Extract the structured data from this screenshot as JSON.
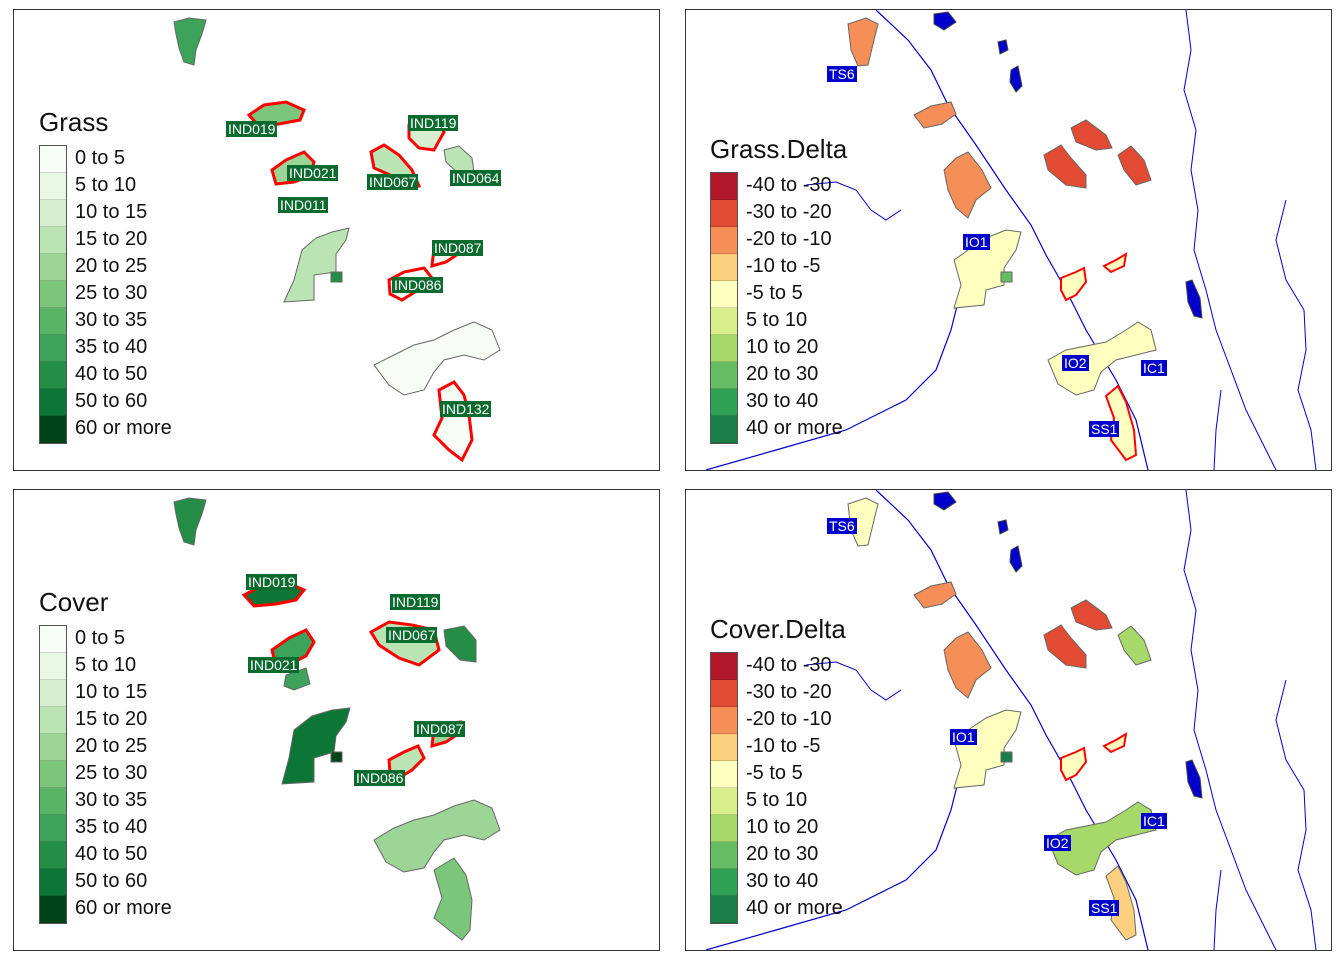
{
  "panels": {
    "grass": {
      "legend_title": "Grass",
      "classes": [
        {
          "label": "0 to 5",
          "color": "#f7fcf5"
        },
        {
          "label": "5 to 10",
          "color": "#e8f6e4"
        },
        {
          "label": "10 to 15",
          "color": "#d5efcf"
        },
        {
          "label": "15 to 20",
          "color": "#bae4b3"
        },
        {
          "label": "20 to 25",
          "color": "#9dd597"
        },
        {
          "label": "25 to 30",
          "color": "#7bc67b"
        },
        {
          "label": "30 to 35",
          "color": "#5ab465"
        },
        {
          "label": "35 to 40",
          "color": "#3da35a"
        },
        {
          "label": "40 to 50",
          "color": "#248d46"
        },
        {
          "label": "50 to 60",
          "color": "#0b7635"
        },
        {
          "label": "60 or more",
          "color": "#00441b"
        }
      ],
      "site_labels": [
        "IND019",
        "IND021",
        "IND011",
        "IND119",
        "IND067",
        "IND064",
        "IND087",
        "IND086",
        "IND132"
      ]
    },
    "cover": {
      "legend_title": "Cover",
      "classes": [
        {
          "label": "0 to 5",
          "color": "#f7fcf5"
        },
        {
          "label": "5 to 10",
          "color": "#e8f6e4"
        },
        {
          "label": "10 to 15",
          "color": "#d5efcf"
        },
        {
          "label": "15 to 20",
          "color": "#bae4b3"
        },
        {
          "label": "20 to 25",
          "color": "#9dd597"
        },
        {
          "label": "25 to 30",
          "color": "#7bc67b"
        },
        {
          "label": "30 to 35",
          "color": "#5ab465"
        },
        {
          "label": "35 to 40",
          "color": "#3da35a"
        },
        {
          "label": "40 to 50",
          "color": "#248d46"
        },
        {
          "label": "50 to 60",
          "color": "#0b7635"
        },
        {
          "label": "60 or more",
          "color": "#00441b"
        }
      ],
      "site_labels": [
        "IND019",
        "IND119",
        "IND067",
        "IND021",
        "IND087",
        "IND086"
      ]
    },
    "grass_delta": {
      "legend_title": "Grass.Delta",
      "classes": [
        {
          "label": "-40 to -30",
          "color": "#b2182b"
        },
        {
          "label": "-30 to -20",
          "color": "#e34a33"
        },
        {
          "label": "-20 to -10",
          "color": "#f68f57"
        },
        {
          "label": "-10 to -5",
          "color": "#fdd07f"
        },
        {
          "label": "-5 to 5",
          "color": "#ffffbf"
        },
        {
          "label": "5 to 10",
          "color": "#d9ef8b"
        },
        {
          "label": "10 to 20",
          "color": "#a6d96a"
        },
        {
          "label": "20 to 30",
          "color": "#66bd63"
        },
        {
          "label": "30 to 40",
          "color": "#2ea155"
        },
        {
          "label": "40 or more",
          "color": "#1a7f4b"
        }
      ],
      "site_labels": [
        "TS6",
        "IO1",
        "IO2",
        "IC1",
        "SS1"
      ]
    },
    "cover_delta": {
      "legend_title": "Cover.Delta",
      "classes": [
        {
          "label": "-40 to -30",
          "color": "#b2182b"
        },
        {
          "label": "-30 to -20",
          "color": "#e34a33"
        },
        {
          "label": "-20 to -10",
          "color": "#f68f57"
        },
        {
          "label": "-10 to -5",
          "color": "#fdd07f"
        },
        {
          "label": "-5 to 5",
          "color": "#ffffbf"
        },
        {
          "label": "5 to 10",
          "color": "#d9ef8b"
        },
        {
          "label": "10 to 20",
          "color": "#a6d96a"
        },
        {
          "label": "20 to 30",
          "color": "#66bd63"
        },
        {
          "label": "30 to 40",
          "color": "#2ea155"
        },
        {
          "label": "40 or more",
          "color": "#1a7f4b"
        }
      ],
      "site_labels": [
        "TS6",
        "IO1",
        "IO2",
        "IC1",
        "SS1"
      ]
    }
  },
  "colors": {
    "highlight_outline": "#ff0000",
    "site_label_bg_green": "#0b6b2e",
    "site_label_bg_blue": "#0000cc",
    "water": "#0000cc",
    "polygon_border": "#666666"
  }
}
